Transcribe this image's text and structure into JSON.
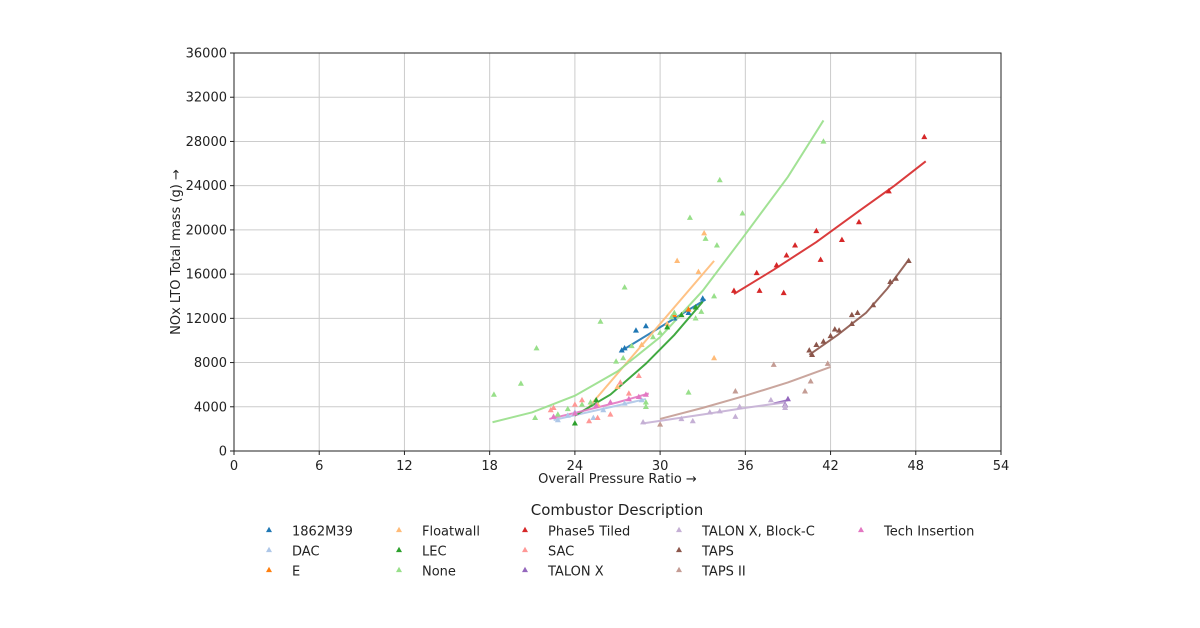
{
  "chart_data": {
    "type": "scatter",
    "xlabel": "Overall Pressure Ratio →",
    "ylabel": "NOx LTO Total mass (g) →",
    "xlim": [
      0,
      54
    ],
    "ylim": [
      0,
      36000
    ],
    "xticks": [
      0,
      6,
      12,
      18,
      24,
      30,
      36,
      42,
      48,
      54
    ],
    "yticks": [
      0,
      4000,
      8000,
      12000,
      16000,
      20000,
      24000,
      28000,
      32000,
      36000
    ],
    "grid": true,
    "marker": "triangle",
    "legend_title": "Combustor Description",
    "legend_position": "bottom",
    "series": [
      {
        "name": "1862M39",
        "color": "#1f77b4",
        "points": [
          [
            27.3,
            9100
          ],
          [
            27.5,
            9300
          ],
          [
            28.3,
            10900
          ],
          [
            29.0,
            11300
          ],
          [
            31.0,
            12000
          ],
          [
            32.0,
            12500
          ],
          [
            33.0,
            13800
          ]
        ],
        "fit": [
          [
            27.2,
            9000
          ],
          [
            33.2,
            13700
          ]
        ]
      },
      {
        "name": "DAC",
        "color": "#aec7e8",
        "points": [
          [
            22.8,
            2800
          ],
          [
            23.5,
            3200
          ],
          [
            24.0,
            3500
          ],
          [
            25.3,
            3000
          ],
          [
            26.0,
            3700
          ],
          [
            27.5,
            4300
          ],
          [
            28.7,
            4600
          ]
        ],
        "fit": [
          [
            22.5,
            2800
          ],
          [
            29.0,
            4700
          ]
        ]
      },
      {
        "name": "E",
        "color": "#ff7f0e",
        "points": [
          [
            31.0,
            12300
          ],
          [
            32.0,
            12800
          ]
        ],
        "fit": []
      },
      {
        "name": "Floatwall",
        "color": "#ffbb78",
        "points": [
          [
            25.6,
            4200
          ],
          [
            27.0,
            5800
          ],
          [
            28.7,
            9600
          ],
          [
            30.5,
            11500
          ],
          [
            31.5,
            12300
          ],
          [
            31.2,
            17200
          ],
          [
            32.7,
            16200
          ],
          [
            33.1,
            19700
          ],
          [
            33.8,
            8400
          ]
        ],
        "fit": [
          [
            25.0,
            4000
          ],
          [
            33.8,
            17200
          ]
        ]
      },
      {
        "name": "LEC",
        "color": "#2ca02c",
        "points": [
          [
            24.0,
            2500
          ],
          [
            25.5,
            4600
          ],
          [
            30.5,
            11200
          ],
          [
            31.5,
            12300
          ],
          [
            32.5,
            13000
          ]
        ],
        "fit": [
          [
            24.0,
            3200
          ],
          [
            26.5,
            5100
          ],
          [
            29.0,
            7900
          ],
          [
            31.0,
            10500
          ],
          [
            33.0,
            13500
          ]
        ]
      },
      {
        "name": "None",
        "color": "#98df8a",
        "points": [
          [
            18.3,
            5100
          ],
          [
            20.2,
            6100
          ],
          [
            21.3,
            9300
          ],
          [
            21.2,
            3000
          ],
          [
            22.8,
            3300
          ],
          [
            23.5,
            3800
          ],
          [
            24.5,
            4200
          ],
          [
            25.1,
            4400
          ],
          [
            25.8,
            11700
          ],
          [
            26.9,
            8100
          ],
          [
            27.4,
            8400
          ],
          [
            27.5,
            14800
          ],
          [
            28.0,
            9500
          ],
          [
            29.0,
            4400
          ],
          [
            29.0,
            4000
          ],
          [
            29.5,
            10300
          ],
          [
            30.0,
            10700
          ],
          [
            30.8,
            12100
          ],
          [
            31.0,
            12500
          ],
          [
            32.0,
            5300
          ],
          [
            32.1,
            21100
          ],
          [
            32.5,
            12000
          ],
          [
            32.9,
            12600
          ],
          [
            33.2,
            19200
          ],
          [
            33.8,
            14000
          ],
          [
            34.0,
            18600
          ],
          [
            34.2,
            24500
          ],
          [
            35.8,
            21500
          ],
          [
            41.5,
            28000
          ]
        ],
        "fit": [
          [
            18.2,
            2600
          ],
          [
            21.0,
            3500
          ],
          [
            24.0,
            5000
          ],
          [
            27.0,
            7200
          ],
          [
            30.0,
            10300
          ],
          [
            33.0,
            14500
          ],
          [
            36.0,
            19600
          ],
          [
            39.0,
            24800
          ],
          [
            41.5,
            29900
          ]
        ]
      },
      {
        "name": "Phase5 Tiled",
        "color": "#d62728",
        "points": [
          [
            35.2,
            14500
          ],
          [
            36.8,
            16100
          ],
          [
            37.0,
            14500
          ],
          [
            38.2,
            16800
          ],
          [
            38.7,
            14300
          ],
          [
            38.9,
            17700
          ],
          [
            39.5,
            18600
          ],
          [
            41.0,
            19900
          ],
          [
            41.3,
            17300
          ],
          [
            42.8,
            19100
          ],
          [
            44.0,
            20700
          ],
          [
            46.1,
            23500
          ],
          [
            48.6,
            28400
          ]
        ],
        "fit": [
          [
            35.2,
            14200
          ],
          [
            38.0,
            16400
          ],
          [
            41.0,
            18900
          ],
          [
            44.0,
            21700
          ],
          [
            46.5,
            24000
          ],
          [
            48.7,
            26200
          ]
        ]
      },
      {
        "name": "SAC",
        "color": "#ff9896",
        "points": [
          [
            22.3,
            3700
          ],
          [
            22.5,
            3900
          ],
          [
            24.0,
            4200
          ],
          [
            24.5,
            4600
          ],
          [
            25.0,
            2700
          ],
          [
            25.6,
            3000
          ],
          [
            26.5,
            3300
          ],
          [
            27.2,
            6200
          ],
          [
            27.8,
            5200
          ],
          [
            28.5,
            6800
          ]
        ],
        "fit": []
      },
      {
        "name": "TALON X",
        "color": "#9467bd",
        "points": [
          [
            38.8,
            4200
          ],
          [
            39.0,
            4700
          ]
        ],
        "fit": [
          [
            38.0,
            4300
          ],
          [
            39.0,
            4600
          ]
        ]
      },
      {
        "name": "TALON X, Block-C",
        "color": "#c5b0d5",
        "points": [
          [
            28.8,
            2600
          ],
          [
            31.5,
            2900
          ],
          [
            32.3,
            2700
          ],
          [
            33.5,
            3500
          ],
          [
            34.2,
            3600
          ],
          [
            35.3,
            3100
          ],
          [
            35.6,
            4000
          ],
          [
            37.8,
            4600
          ],
          [
            38.8,
            3900
          ],
          [
            38.8,
            4100
          ]
        ],
        "fit": [
          [
            28.8,
            2500
          ],
          [
            33.0,
            3300
          ],
          [
            36.0,
            3900
          ],
          [
            38.8,
            4400
          ]
        ]
      },
      {
        "name": "TAPS",
        "color": "#8c564b",
        "points": [
          [
            40.5,
            9100
          ],
          [
            40.7,
            8700
          ],
          [
            41.0,
            9600
          ],
          [
            41.5,
            9900
          ],
          [
            42.0,
            10400
          ],
          [
            42.3,
            11000
          ],
          [
            42.6,
            10900
          ],
          [
            43.5,
            11500
          ],
          [
            43.5,
            12300
          ],
          [
            43.9,
            12500
          ],
          [
            45.0,
            13200
          ],
          [
            46.2,
            15300
          ],
          [
            46.6,
            15600
          ],
          [
            47.5,
            17200
          ]
        ],
        "fit": [
          [
            40.5,
            8700
          ],
          [
            42.5,
            10500
          ],
          [
            44.5,
            12500
          ],
          [
            46.0,
            14700
          ],
          [
            47.5,
            17300
          ]
        ]
      },
      {
        "name": "TAPS II",
        "color": "#c49c94",
        "points": [
          [
            30.0,
            2400
          ],
          [
            35.3,
            5400
          ],
          [
            38.0,
            7800
          ],
          [
            40.2,
            5400
          ],
          [
            40.6,
            6300
          ],
          [
            41.8,
            7900
          ]
        ],
        "fit": [
          [
            30.0,
            2900
          ],
          [
            33.0,
            3900
          ],
          [
            36.0,
            5000
          ],
          [
            39.0,
            6200
          ],
          [
            42.0,
            7600
          ]
        ]
      },
      {
        "name": "Tech Insertion",
        "color": "#e377c2",
        "points": [
          [
            22.5,
            3100
          ],
          [
            24.0,
            3400
          ],
          [
            25.5,
            4100
          ],
          [
            26.5,
            4400
          ],
          [
            27.8,
            4700
          ],
          [
            28.5,
            4900
          ],
          [
            29.0,
            5100
          ]
        ],
        "fit": [
          [
            22.2,
            2900
          ],
          [
            24.5,
            3600
          ],
          [
            27.0,
            4400
          ],
          [
            29.2,
            5200
          ]
        ]
      }
    ]
  }
}
